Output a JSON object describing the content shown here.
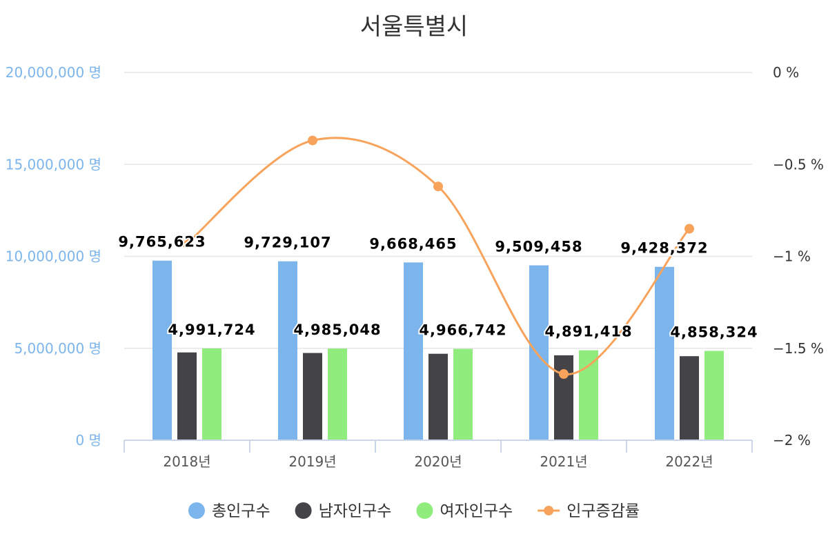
{
  "chart_data": {
    "type": "bar",
    "title": "서울특별시",
    "categories": [
      "2018년",
      "2019년",
      "2020년",
      "2021년",
      "2022년"
    ],
    "series": [
      {
        "name": "총인구수",
        "type": "bar",
        "color": "#7cb5ec",
        "axis": "left",
        "values": [
          9765623,
          9729107,
          9668465,
          9509458,
          9428372
        ],
        "labels": [
          "9,765,623",
          "9,729,107",
          "9,668,465",
          "9,509,458",
          "9,428,372"
        ]
      },
      {
        "name": "남자인구수",
        "type": "bar",
        "color": "#434348",
        "axis": "left",
        "values": [
          4773899,
          4744059,
          4701723,
          4618040,
          4570048
        ]
      },
      {
        "name": "여자인구수",
        "type": "bar",
        "color": "#90ed7d",
        "axis": "left",
        "values": [
          4991724,
          4985048,
          4966742,
          4891418,
          4858324
        ],
        "labels": [
          "4,991,724",
          "4,985,048",
          "4,966,742",
          "4,891,418",
          "4,858,324"
        ]
      },
      {
        "name": "인구증감률",
        "type": "line",
        "color": "#f7a35c",
        "axis": "right",
        "values": [
          -0.93,
          -0.37,
          -0.62,
          -1.64,
          -0.85
        ]
      }
    ],
    "y_left": {
      "min": 0,
      "max": 20000000,
      "ticks": [
        "0 명",
        "5,000,000 명",
        "10,000,000 명",
        "15,000,000 명",
        "20,000,000 명"
      ]
    },
    "y_right": {
      "min": -2,
      "max": 0,
      "ticks": [
        "−2 %",
        "−1.5 %",
        "−1 %",
        "−0.5 %",
        "0 %"
      ]
    },
    "grid": true,
    "legend": "bottom-center"
  }
}
